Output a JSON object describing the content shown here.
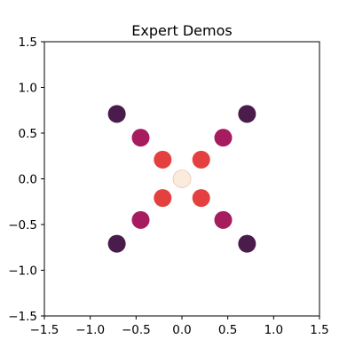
{
  "chart_data": {
    "type": "scatter",
    "title": "Expert Demos",
    "xlabel": "",
    "ylabel": "",
    "xlim": [
      -1.5,
      1.5
    ],
    "ylim": [
      -1.5,
      1.5
    ],
    "grid": false,
    "x_ticks": [
      "−1.5",
      "−1.0",
      "−0.5",
      "0.0",
      "0.5",
      "1.0",
      "1.5"
    ],
    "y_ticks": [
      "1.5",
      "1.0",
      "0.5",
      "0.0",
      "−0.5",
      "−1.0",
      "−1.5"
    ],
    "x_tick_values": [
      -1.5,
      -1.0,
      -0.5,
      0.0,
      0.5,
      1.0,
      1.5
    ],
    "y_tick_values": [
      1.5,
      1.0,
      0.5,
      0.0,
      -0.5,
      -1.0,
      -1.5
    ],
    "points": [
      {
        "x": -0.71,
        "y": 0.71,
        "color": "#4a1c4c"
      },
      {
        "x": 0.71,
        "y": 0.71,
        "color": "#4a1c4c"
      },
      {
        "x": -0.71,
        "y": -0.71,
        "color": "#4a1c4c"
      },
      {
        "x": 0.71,
        "y": -0.71,
        "color": "#4a1c4c"
      },
      {
        "x": -0.45,
        "y": 0.45,
        "color": "#a61c5f"
      },
      {
        "x": 0.45,
        "y": 0.45,
        "color": "#a61c5f"
      },
      {
        "x": -0.45,
        "y": -0.45,
        "color": "#a61c5f"
      },
      {
        "x": 0.45,
        "y": -0.45,
        "color": "#a61c5f"
      },
      {
        "x": -0.21,
        "y": 0.21,
        "color": "#e3403f"
      },
      {
        "x": 0.21,
        "y": 0.21,
        "color": "#e3403f"
      },
      {
        "x": -0.21,
        "y": -0.21,
        "color": "#e3403f"
      },
      {
        "x": 0.21,
        "y": -0.21,
        "color": "#e3403f"
      },
      {
        "x": 0.0,
        "y": 0.0,
        "color": "#fbebdd"
      }
    ]
  }
}
